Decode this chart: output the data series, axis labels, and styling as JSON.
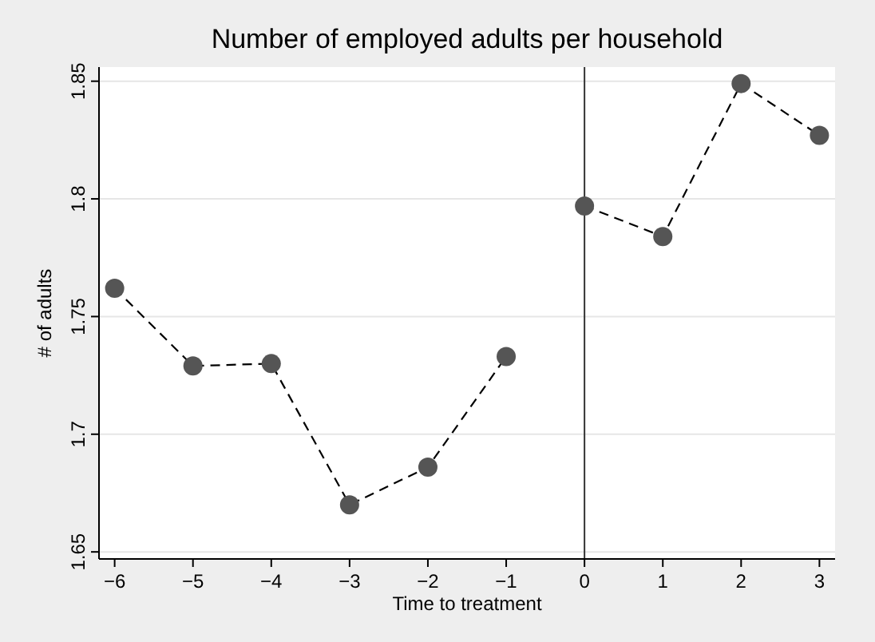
{
  "chart_data": {
    "type": "line",
    "title": "Number of employed adults per household",
    "xlabel": "Time to treatment",
    "ylabel": "# of adults",
    "series": [
      {
        "color": "#555555",
        "x": [
          -6,
          -5,
          -4,
          -3,
          -2,
          -1
        ],
        "values": [
          1.762,
          1.729,
          1.73,
          1.67,
          1.686,
          1.733
        ]
      },
      {
        "color": "#555555",
        "x": [
          0,
          1,
          2,
          3
        ],
        "values": [
          1.797,
          1.784,
          1.849,
          1.827
        ]
      }
    ],
    "xlim": [
      -6.2,
      3.2
    ],
    "xticks": [
      {
        "value": -6,
        "label": "−6"
      },
      {
        "value": -5,
        "label": "−5"
      },
      {
        "value": -4,
        "label": "−4"
      },
      {
        "value": -3,
        "label": "−3"
      },
      {
        "value": -2,
        "label": "−2"
      },
      {
        "value": -1,
        "label": "−1"
      },
      0,
      1,
      2,
      3
    ],
    "ylim": [
      1.647,
      1.856
    ],
    "yticks": [
      1.65,
      1.7,
      1.75,
      1.8,
      1.85
    ],
    "grid": "y",
    "marker": "circle",
    "line_style": "dashed",
    "ref_lines": [
      {
        "axis": "x",
        "value": 0,
        "color": "#333333"
      }
    ]
  }
}
